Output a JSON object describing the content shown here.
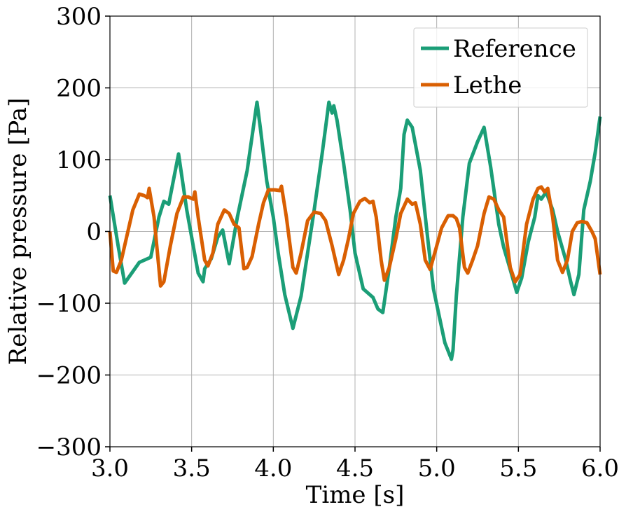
{
  "chart_data": {
    "type": "line",
    "title": "",
    "xlabel": "Time [s]",
    "ylabel": "Relative pressure [Pa]",
    "xlim": [
      3.0,
      6.0
    ],
    "ylim": [
      -300,
      300
    ],
    "x_ticks": [
      3.0,
      3.5,
      4.0,
      4.5,
      5.0,
      5.5,
      6.0
    ],
    "x_tick_labels": [
      "3.0",
      "3.5",
      "4.0",
      "4.5",
      "5.0",
      "5.5",
      "6.0"
    ],
    "y_ticks": [
      300,
      200,
      100,
      0,
      -100,
      -200,
      -300
    ],
    "y_tick_labels": [
      "300",
      "200",
      "100",
      "0",
      "−100",
      "−200",
      "−300"
    ],
    "grid": true,
    "legend_position": "top-right",
    "series": [
      {
        "name": "Reference",
        "color": "#1b9e77",
        "points": [
          [
            3.0,
            50
          ],
          [
            3.05,
            -20
          ],
          [
            3.09,
            -72
          ],
          [
            3.18,
            -43
          ],
          [
            3.25,
            -36
          ],
          [
            3.3,
            20
          ],
          [
            3.33,
            42
          ],
          [
            3.36,
            38
          ],
          [
            3.42,
            108
          ],
          [
            3.47,
            30
          ],
          [
            3.54,
            -58
          ],
          [
            3.57,
            -70
          ],
          [
            3.58,
            -52
          ],
          [
            3.62,
            -38
          ],
          [
            3.66,
            -8
          ],
          [
            3.69,
            2
          ],
          [
            3.73,
            -45
          ],
          [
            3.78,
            20
          ],
          [
            3.84,
            85
          ],
          [
            3.9,
            180
          ],
          [
            3.92,
            145
          ],
          [
            3.96,
            70
          ],
          [
            4.0,
            20
          ],
          [
            4.03,
            -30
          ],
          [
            4.07,
            -88
          ],
          [
            4.12,
            -135
          ],
          [
            4.17,
            -90
          ],
          [
            4.21,
            -30
          ],
          [
            4.25,
            30
          ],
          [
            4.3,
            110
          ],
          [
            4.34,
            180
          ],
          [
            4.36,
            165
          ],
          [
            4.37,
            175
          ],
          [
            4.39,
            155
          ],
          [
            4.43,
            95
          ],
          [
            4.47,
            30
          ],
          [
            4.5,
            -30
          ],
          [
            4.55,
            -80
          ],
          [
            4.61,
            -92
          ],
          [
            4.64,
            -108
          ],
          [
            4.67,
            -113
          ],
          [
            4.71,
            -50
          ],
          [
            4.75,
            20
          ],
          [
            4.78,
            60
          ],
          [
            4.8,
            135
          ],
          [
            4.82,
            155
          ],
          [
            4.85,
            145
          ],
          [
            4.9,
            85
          ],
          [
            4.94,
            0
          ],
          [
            4.98,
            -80
          ],
          [
            5.05,
            -155
          ],
          [
            5.09,
            -178
          ],
          [
            5.1,
            -165
          ],
          [
            5.12,
            -90
          ],
          [
            5.16,
            20
          ],
          [
            5.2,
            95
          ],
          [
            5.25,
            125
          ],
          [
            5.29,
            145
          ],
          [
            5.33,
            90
          ],
          [
            5.38,
            10
          ],
          [
            5.41,
            -22
          ],
          [
            5.44,
            -45
          ],
          [
            5.49,
            -85
          ],
          [
            5.52,
            -65
          ],
          [
            5.56,
            -15
          ],
          [
            5.6,
            20
          ],
          [
            5.62,
            50
          ],
          [
            5.64,
            45
          ],
          [
            5.67,
            55
          ],
          [
            5.71,
            30
          ],
          [
            5.74,
            0
          ],
          [
            5.79,
            -40
          ],
          [
            5.82,
            -70
          ],
          [
            5.84,
            -88
          ],
          [
            5.87,
            -60
          ],
          [
            5.9,
            30
          ],
          [
            5.94,
            70
          ],
          [
            5.97,
            110
          ],
          [
            6.0,
            160
          ]
        ]
      },
      {
        "name": "Lethe",
        "color": "#d95f02",
        "points": [
          [
            3.0,
            0
          ],
          [
            3.02,
            -55
          ],
          [
            3.04,
            -57
          ],
          [
            3.07,
            -40
          ],
          [
            3.1,
            -10
          ],
          [
            3.14,
            30
          ],
          [
            3.18,
            52
          ],
          [
            3.21,
            50
          ],
          [
            3.23,
            47
          ],
          [
            3.24,
            60
          ],
          [
            3.27,
            20
          ],
          [
            3.31,
            -76
          ],
          [
            3.33,
            -70
          ],
          [
            3.37,
            -20
          ],
          [
            3.41,
            25
          ],
          [
            3.45,
            48
          ],
          [
            3.48,
            48
          ],
          [
            3.51,
            45
          ],
          [
            3.52,
            55
          ],
          [
            3.54,
            20
          ],
          [
            3.58,
            -40
          ],
          [
            3.6,
            -48
          ],
          [
            3.63,
            -30
          ],
          [
            3.66,
            10
          ],
          [
            3.7,
            30
          ],
          [
            3.73,
            25
          ],
          [
            3.76,
            10
          ],
          [
            3.79,
            5
          ],
          [
            3.82,
            -52
          ],
          [
            3.84,
            -50
          ],
          [
            3.87,
            -35
          ],
          [
            3.91,
            10
          ],
          [
            3.94,
            40
          ],
          [
            3.97,
            58
          ],
          [
            4.01,
            58
          ],
          [
            4.04,
            57
          ],
          [
            4.05,
            63
          ],
          [
            4.08,
            20
          ],
          [
            4.12,
            -50
          ],
          [
            4.14,
            -58
          ],
          [
            4.17,
            -30
          ],
          [
            4.21,
            15
          ],
          [
            4.25,
            27
          ],
          [
            4.29,
            25
          ],
          [
            4.32,
            15
          ],
          [
            4.36,
            -20
          ],
          [
            4.4,
            -60
          ],
          [
            4.43,
            -40
          ],
          [
            4.46,
            -10
          ],
          [
            4.49,
            25
          ],
          [
            4.53,
            42
          ],
          [
            4.56,
            46
          ],
          [
            4.59,
            40
          ],
          [
            4.61,
            42
          ],
          [
            4.63,
            20
          ],
          [
            4.66,
            -40
          ],
          [
            4.68,
            -68
          ],
          [
            4.71,
            -50
          ],
          [
            4.75,
            -10
          ],
          [
            4.78,
            25
          ],
          [
            4.82,
            45
          ],
          [
            4.85,
            38
          ],
          [
            4.87,
            40
          ],
          [
            4.9,
            10
          ],
          [
            4.93,
            -40
          ],
          [
            4.96,
            -53
          ],
          [
            5.0,
            -20
          ],
          [
            5.03,
            5
          ],
          [
            5.07,
            22
          ],
          [
            5.1,
            22
          ],
          [
            5.12,
            18
          ],
          [
            5.14,
            5
          ],
          [
            5.17,
            -50
          ],
          [
            5.19,
            -58
          ],
          [
            5.22,
            -40
          ],
          [
            5.25,
            -20
          ],
          [
            5.29,
            25
          ],
          [
            5.32,
            48
          ],
          [
            5.35,
            45
          ],
          [
            5.38,
            30
          ],
          [
            5.41,
            20
          ],
          [
            5.45,
            -50
          ],
          [
            5.48,
            -70
          ],
          [
            5.51,
            -60
          ],
          [
            5.55,
            10
          ],
          [
            5.59,
            45
          ],
          [
            5.62,
            60
          ],
          [
            5.64,
            62
          ],
          [
            5.66,
            55
          ],
          [
            5.68,
            60
          ],
          [
            5.71,
            20
          ],
          [
            5.74,
            -40
          ],
          [
            5.77,
            -57
          ],
          [
            5.8,
            -40
          ],
          [
            5.83,
            0
          ],
          [
            5.86,
            12
          ],
          [
            5.89,
            14
          ],
          [
            5.92,
            12
          ],
          [
            5.95,
            0
          ],
          [
            5.97,
            -10
          ],
          [
            6.0,
            -60
          ]
        ]
      }
    ]
  }
}
